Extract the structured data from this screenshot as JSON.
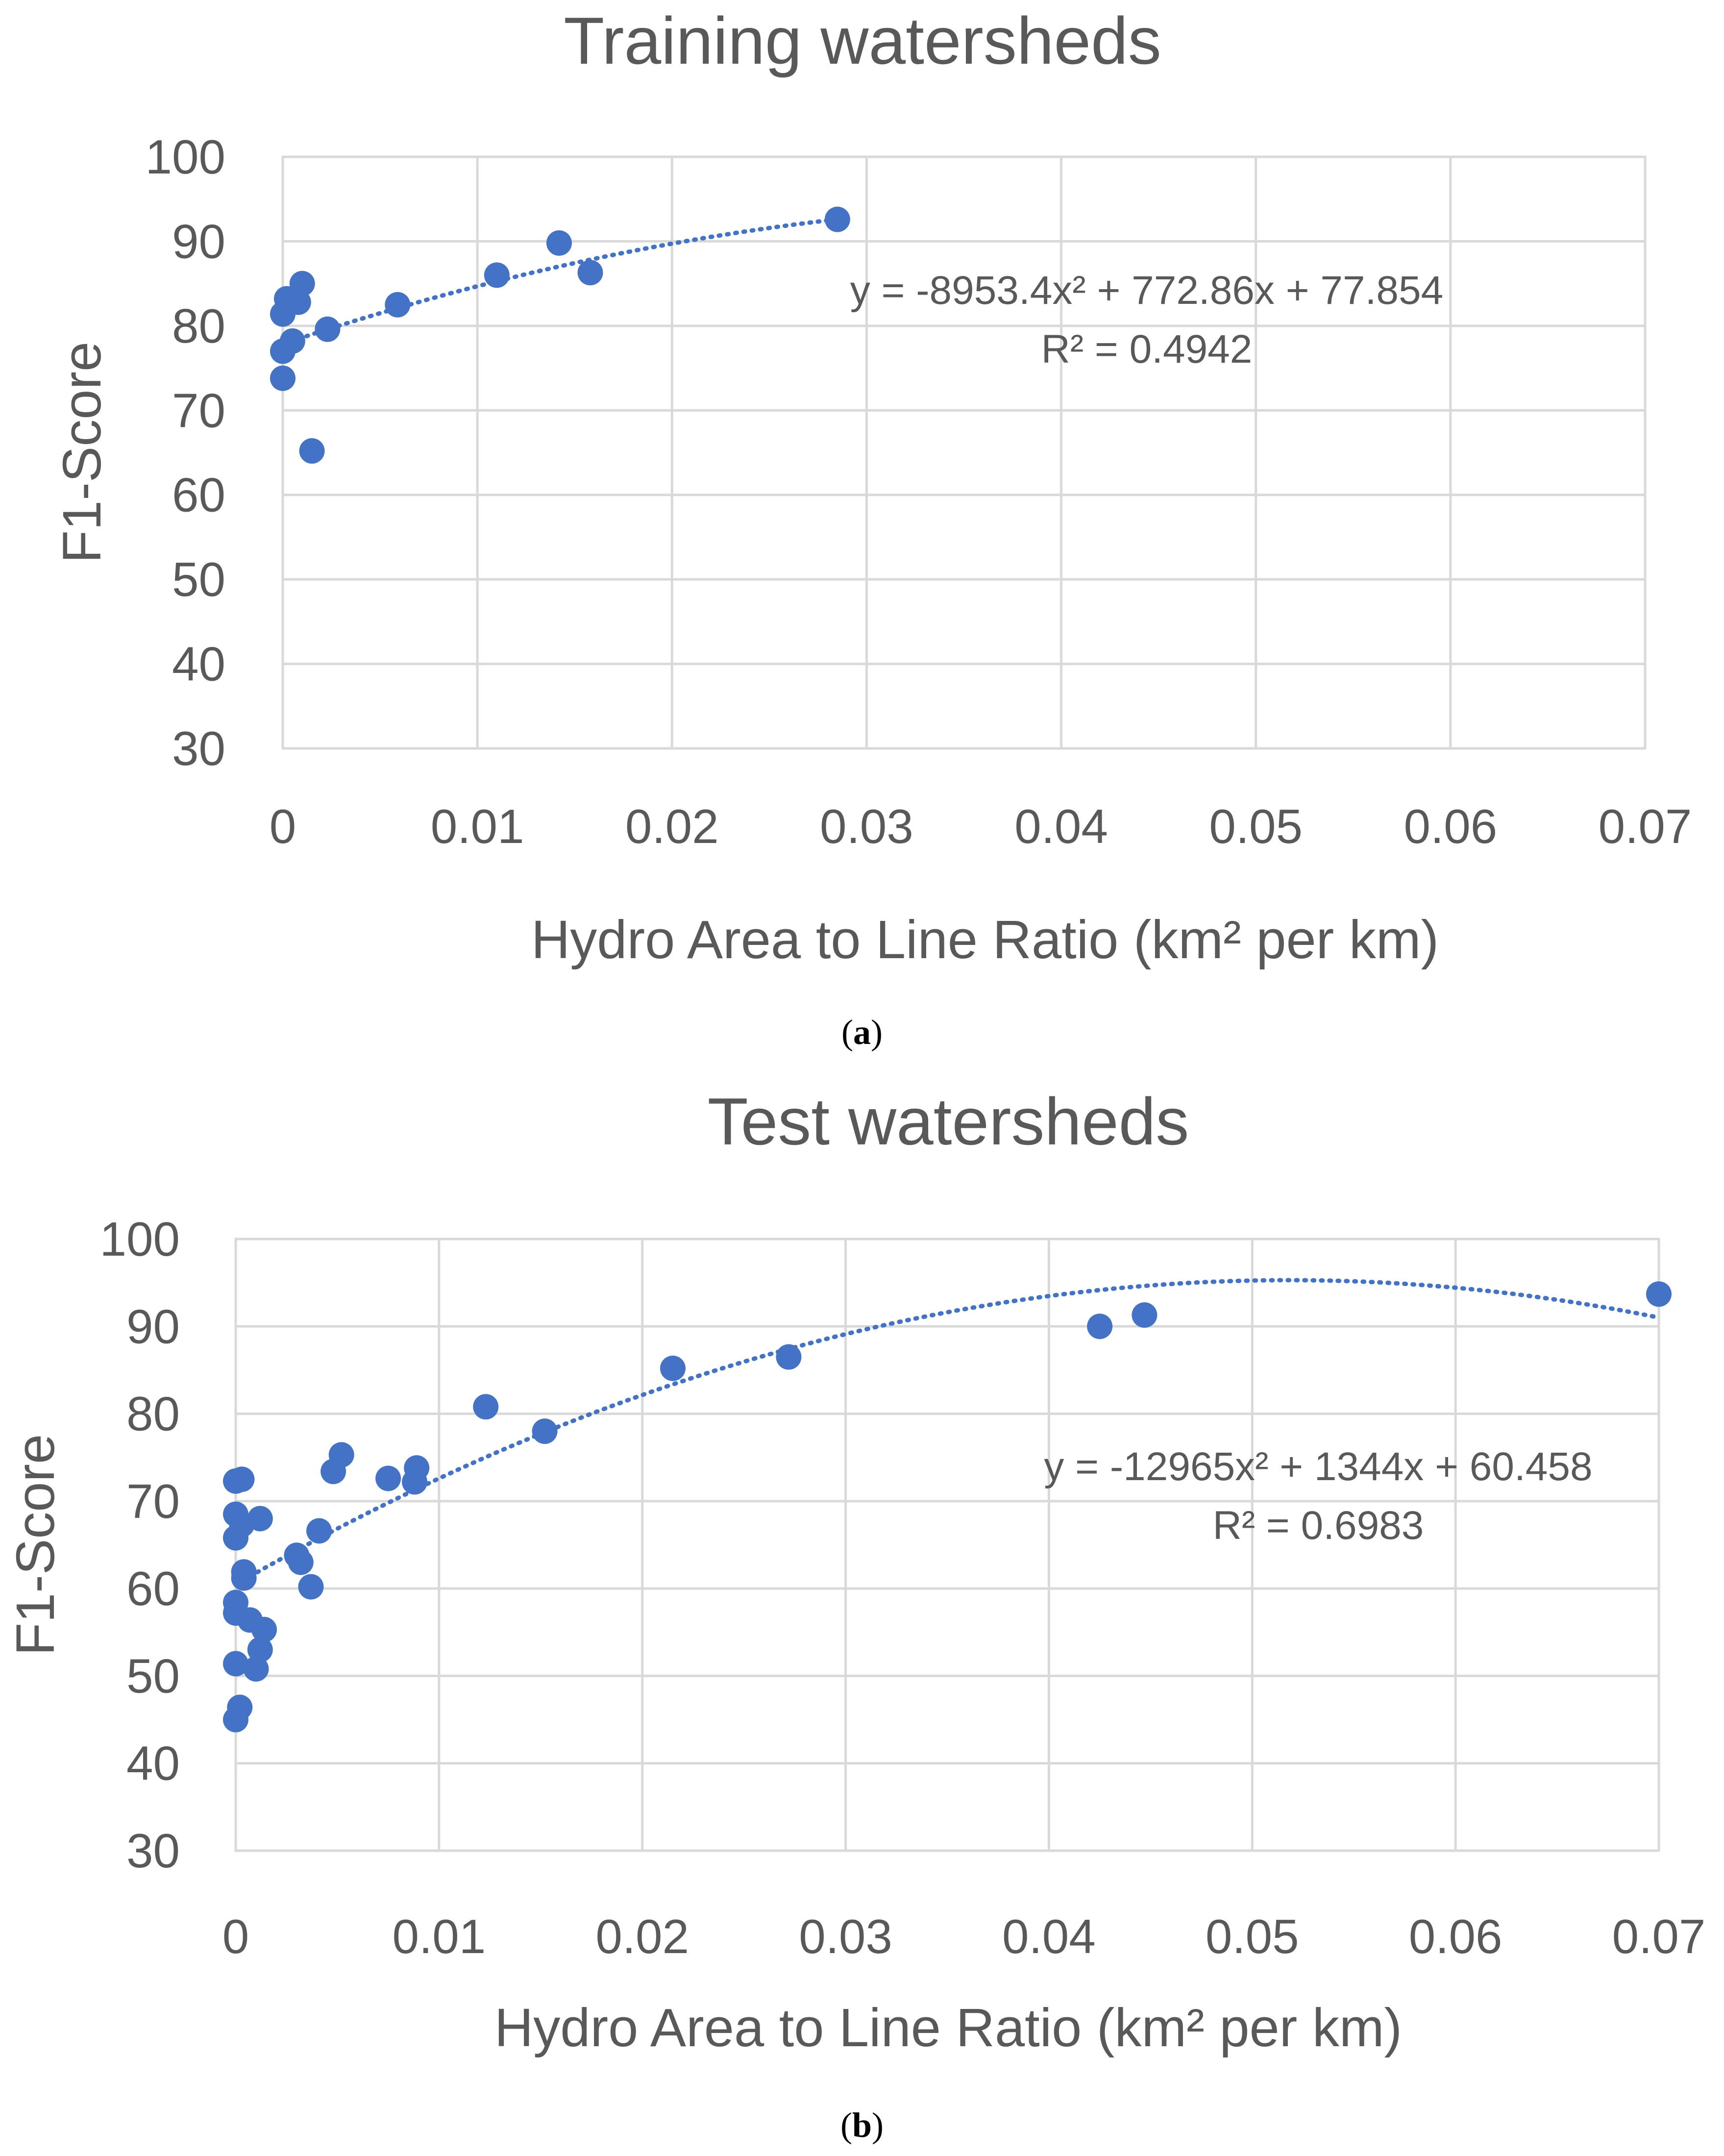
{
  "chart_data": [
    {
      "type": "scatter",
      "panel": "a",
      "title": "Training watersheds",
      "xlabel": "Hydro Area to Line Ratio (km² per km)",
      "ylabel": "F1-Score",
      "xlim": [
        0,
        0.07
      ],
      "ylim": [
        30,
        100
      ],
      "x_ticks": [
        "0",
        "0.01",
        "0.02",
        "0.03",
        "0.04",
        "0.05",
        "0.06",
        "0.07"
      ],
      "y_ticks": [
        "30",
        "40",
        "50",
        "60",
        "70",
        "80",
        "90",
        "100"
      ],
      "grid": "vertical and horizontal",
      "points": [
        {
          "x": 0.0,
          "y": 73.8
        },
        {
          "x": 0.0,
          "y": 77.0
        },
        {
          "x": 0.0,
          "y": 81.4
        },
        {
          "x": 0.0002,
          "y": 83.2
        },
        {
          "x": 0.0005,
          "y": 78.2
        },
        {
          "x": 0.0008,
          "y": 82.8
        },
        {
          "x": 0.001,
          "y": 85.0
        },
        {
          "x": 0.0015,
          "y": 65.2
        },
        {
          "x": 0.0023,
          "y": 79.6
        },
        {
          "x": 0.0059,
          "y": 82.5
        },
        {
          "x": 0.011,
          "y": 86.0
        },
        {
          "x": 0.0142,
          "y": 89.8
        },
        {
          "x": 0.0158,
          "y": 86.3
        },
        {
          "x": 0.0285,
          "y": 92.6
        }
      ],
      "trendline": {
        "kind": "polynomial order 2",
        "coefficients": [
          -8953.4,
          772.86,
          77.854
        ],
        "x_range": [
          0,
          0.0285
        ],
        "equation": "y = -8953.4x² + 772.86x + 77.854",
        "r2": "R² = 0.4942"
      },
      "marker_color": "#4472c4",
      "caption": "(a)"
    },
    {
      "type": "scatter",
      "panel": "b",
      "title": "Test watersheds",
      "xlabel": "Hydro Area to Line Ratio (km² per km)",
      "ylabel": "F1-Score",
      "xlim": [
        0,
        0.07
      ],
      "ylim": [
        30,
        100
      ],
      "x_ticks": [
        "0",
        "0.01",
        "0.02",
        "0.03",
        "0.04",
        "0.05",
        "0.06",
        "0.07"
      ],
      "y_ticks": [
        "30",
        "40",
        "50",
        "60",
        "70",
        "80",
        "90",
        "100"
      ],
      "grid": "vertical and horizontal",
      "points": [
        {
          "x": 0.0,
          "y": 72.3
        },
        {
          "x": 0.0,
          "y": 68.5
        },
        {
          "x": 0.0,
          "y": 65.8
        },
        {
          "x": 0.0,
          "y": 58.4
        },
        {
          "x": 0.0,
          "y": 57.2
        },
        {
          "x": 0.0,
          "y": 51.4
        },
        {
          "x": 0.0,
          "y": 45.0
        },
        {
          "x": 0.0002,
          "y": 46.4
        },
        {
          "x": 0.0003,
          "y": 72.5
        },
        {
          "x": 0.0003,
          "y": 67.3
        },
        {
          "x": 0.0004,
          "y": 61.9
        },
        {
          "x": 0.0004,
          "y": 61.2
        },
        {
          "x": 0.0007,
          "y": 56.4
        },
        {
          "x": 0.001,
          "y": 50.8
        },
        {
          "x": 0.0012,
          "y": 68.0
        },
        {
          "x": 0.0012,
          "y": 53.0
        },
        {
          "x": 0.0014,
          "y": 55.3
        },
        {
          "x": 0.003,
          "y": 63.8
        },
        {
          "x": 0.0032,
          "y": 63.0
        },
        {
          "x": 0.0037,
          "y": 60.2
        },
        {
          "x": 0.0041,
          "y": 66.6
        },
        {
          "x": 0.0048,
          "y": 73.4
        },
        {
          "x": 0.0052,
          "y": 75.3
        },
        {
          "x": 0.0075,
          "y": 72.6
        },
        {
          "x": 0.0088,
          "y": 72.2
        },
        {
          "x": 0.0089,
          "y": 73.8
        },
        {
          "x": 0.0123,
          "y": 80.8
        },
        {
          "x": 0.0152,
          "y": 78.0
        },
        {
          "x": 0.0215,
          "y": 85.2
        },
        {
          "x": 0.0272,
          "y": 86.5
        },
        {
          "x": 0.0425,
          "y": 90.0
        },
        {
          "x": 0.0447,
          "y": 91.3
        },
        {
          "x": 0.07,
          "y": 93.7
        }
      ],
      "trendline": {
        "kind": "polynomial order 2",
        "coefficients": [
          -12965,
          1344,
          60.458
        ],
        "x_range": [
          0,
          0.07
        ],
        "equation": "y = -12965x² + 1344x + 60.458",
        "r2": "R² = 0.6983"
      },
      "marker_color": "#4472c4",
      "caption": "(b)"
    }
  ]
}
